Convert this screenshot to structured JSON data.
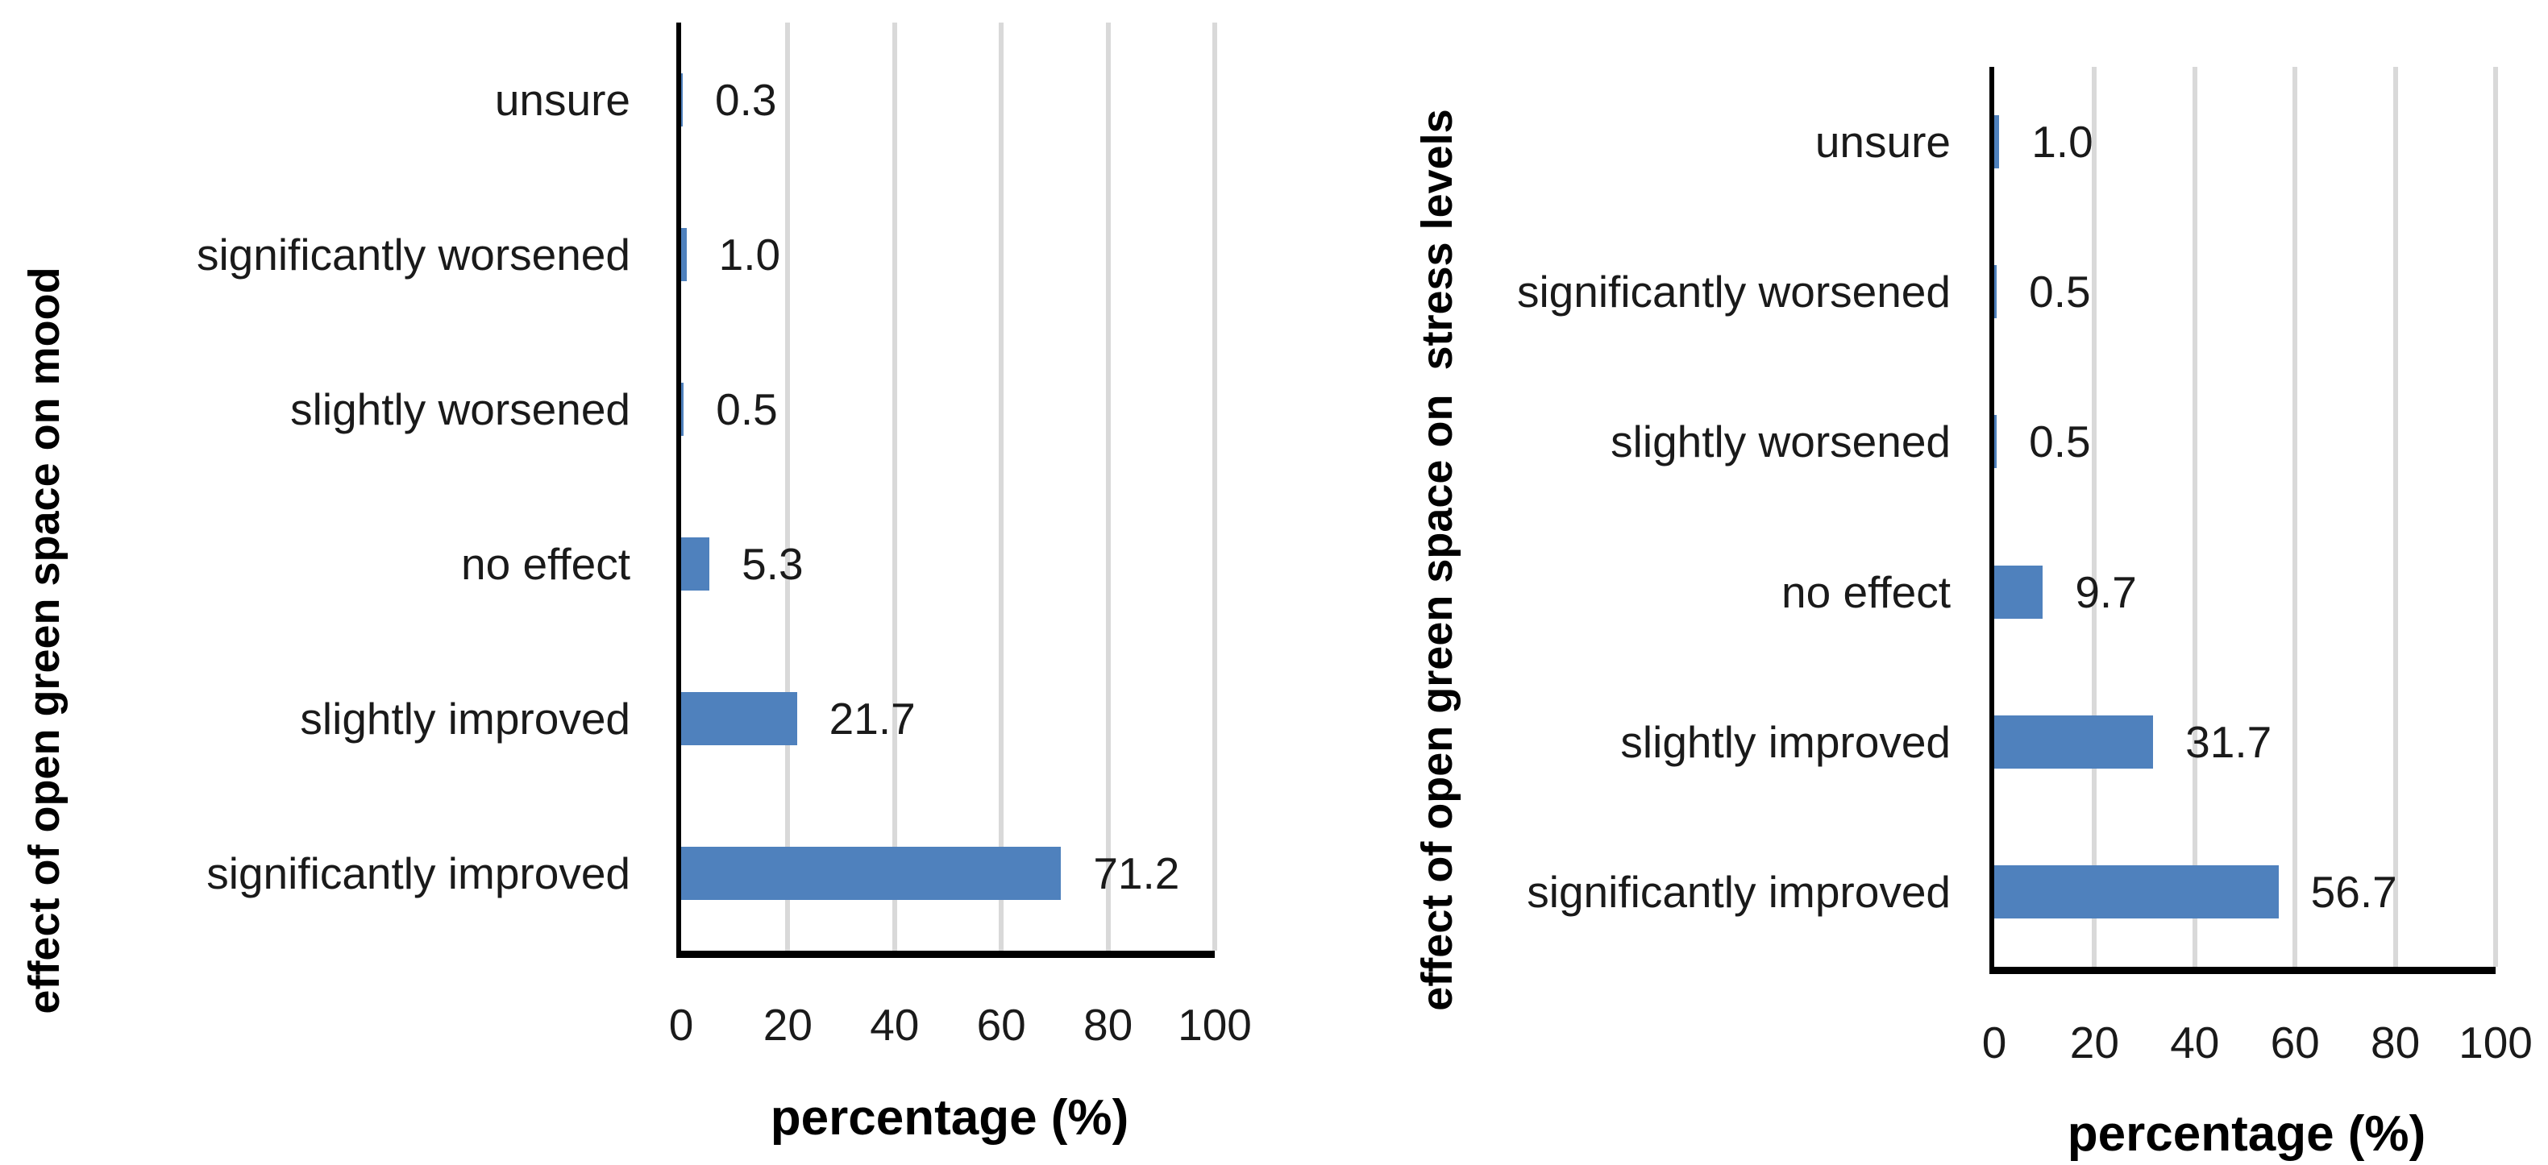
{
  "colors": {
    "background": "#FFFFFF",
    "bar": "#4F81BD",
    "gridline": "#D9D9D9",
    "axis": "#000000",
    "text": "#1A1A1A"
  },
  "chart_data": [
    {
      "type": "bar",
      "orientation": "horizontal",
      "title": "",
      "ylabel": "effect of open green space on mood",
      "xlabel": "percentage (%)",
      "categories": [
        "unsure",
        "significantly worsened",
        "slightly worsened",
        "no effect",
        "slightly improved",
        "significantly improved"
      ],
      "values": [
        0.3,
        1.0,
        0.5,
        5.3,
        21.7,
        71.2
      ],
      "value_labels": [
        "0.3",
        "1.0",
        "0.5",
        "5.3",
        "21.7",
        "71.2"
      ],
      "xlim": [
        0,
        100
      ],
      "xticks": [
        0,
        20,
        40,
        60,
        80,
        100
      ],
      "grid": "vertical",
      "legend": "none",
      "bar_color": "#4F81BD"
    },
    {
      "type": "bar",
      "orientation": "horizontal",
      "title": "",
      "ylabel": "effect of open green space on  stress levels",
      "xlabel": "percentage (%)",
      "categories": [
        "unsure",
        "significantly worsened",
        "slightly worsened",
        "no effect",
        "slightly improved",
        "significantly improved"
      ],
      "values": [
        1.0,
        0.5,
        0.5,
        9.7,
        31.7,
        56.7
      ],
      "value_labels": [
        "1.0",
        "0.5",
        "0.5",
        "9.7",
        "31.7",
        "56.7"
      ],
      "xlim": [
        0,
        100
      ],
      "xticks": [
        0,
        20,
        40,
        60,
        80,
        100
      ],
      "grid": "vertical",
      "legend": "none",
      "bar_color": "#4F81BD"
    }
  ]
}
